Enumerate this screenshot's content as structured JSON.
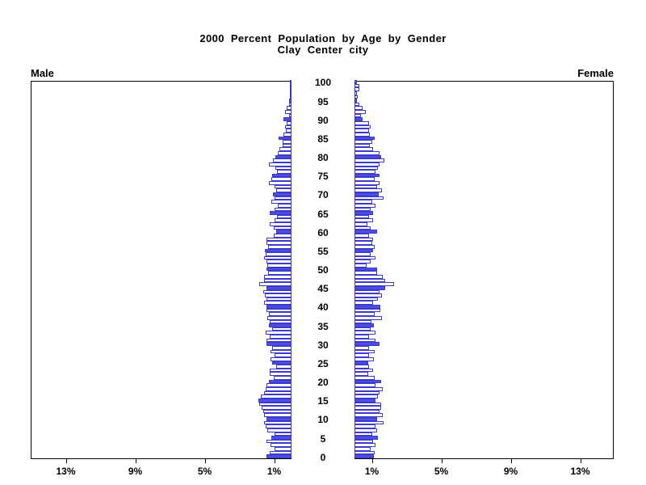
{
  "title": {
    "line1": "2000 Percent Population by Age by Gender",
    "line2": "Clay Center city"
  },
  "panel_labels": {
    "male": "Male",
    "female": "Female"
  },
  "axis": {
    "male_tick_labels": [
      "13%",
      "9%",
      "5%",
      "1%"
    ],
    "male_tick_percents": [
      13,
      9,
      5,
      1
    ],
    "female_tick_labels": [
      "1%",
      "5%",
      "9%",
      "13%"
    ],
    "female_tick_percents": [
      1,
      5,
      9,
      13
    ]
  },
  "colors": {
    "bar_outline": "#3a3acc",
    "bar_fill": "#4d4de4",
    "axis": "#000000",
    "background": "#ffffff"
  },
  "chart_data": {
    "type": "bar",
    "subtype": "population_pyramid",
    "orientation": "horizontal",
    "title": "2000 Percent Population by Age by Gender",
    "subtitle": "Clay Center city",
    "value_unit": "percent of total population",
    "age_min": 0,
    "age_max": 100,
    "age_axis_ticks": [
      0,
      5,
      10,
      15,
      20,
      25,
      30,
      35,
      40,
      45,
      50,
      55,
      60,
      65,
      70,
      75,
      80,
      85,
      90,
      95,
      100
    ],
    "value_axis_ticks_percent": [
      1,
      5,
      9,
      13
    ],
    "value_axis_range_percent": [
      0,
      15
    ],
    "filled_bar_rule": "ages that are multiples of 5 are solid blue, others hollow",
    "legend_position": "none",
    "grid": false,
    "series": [
      {
        "name": "Male",
        "side": "left",
        "values_percent": [
          1.45,
          1.27,
          1.0,
          1.19,
          1.42,
          1.15,
          1.0,
          1.39,
          1.5,
          1.57,
          1.45,
          1.6,
          1.65,
          1.73,
          1.85,
          1.9,
          1.76,
          1.6,
          1.5,
          1.42,
          1.3,
          1.04,
          1.24,
          1.24,
          0.89,
          1.1,
          1.19,
          1.0,
          1.22,
          1.11,
          1.42,
          1.45,
          1.27,
          1.5,
          1.11,
          1.3,
          1.27,
          1.39,
          1.3,
          1.45,
          1.42,
          1.6,
          1.45,
          1.54,
          1.65,
          1.45,
          1.88,
          1.6,
          1.57,
          1.34,
          1.45,
          1.4,
          1.45,
          1.6,
          1.5,
          1.53,
          1.34,
          1.45,
          1.42,
          1.02,
          0.9,
          1.04,
          1.25,
          1.0,
          0.84,
          1.24,
          0.96,
          0.8,
          1.15,
          1.0,
          1.09,
          0.89,
          0.96,
          1.3,
          1.15,
          1.1,
          0.84,
          0.92,
          1.3,
          1.07,
          0.95,
          0.77,
          0.69,
          0.53,
          0.49,
          0.73,
          0.46,
          0.33,
          0.38,
          0.3,
          0.46,
          0.15,
          0.38,
          0.28,
          0.12,
          0.12,
          0.1,
          0.0,
          0.05,
          0.0,
          0.0
        ]
      },
      {
        "name": "Female",
        "side": "right",
        "values_percent": [
          1.1,
          1.15,
          0.92,
          1.19,
          1.07,
          1.34,
          1.0,
          1.3,
          1.19,
          1.68,
          1.3,
          1.65,
          1.45,
          1.53,
          1.53,
          1.22,
          1.34,
          1.45,
          1.65,
          1.22,
          1.53,
          1.15,
          0.77,
          1.07,
          0.84,
          0.77,
          1.1,
          0.84,
          1.15,
          0.84,
          1.45,
          1.19,
          0.84,
          1.19,
          0.92,
          1.1,
          0.97,
          1.6,
          1.15,
          1.5,
          1.5,
          1.07,
          1.34,
          1.6,
          1.45,
          1.76,
          2.26,
          1.76,
          1.65,
          1.3,
          1.3,
          0.69,
          0.92,
          1.22,
          0.92,
          1.07,
          1.15,
          1.0,
          1.07,
          0.84,
          1.3,
          0.92,
          0.73,
          1.07,
          0.84,
          1.07,
          0.92,
          1.22,
          1.0,
          1.68,
          1.38,
          1.6,
          1.3,
          1.45,
          1.15,
          1.45,
          1.2,
          1.35,
          1.45,
          1.71,
          1.53,
          1.45,
          1.07,
          0.9,
          1.0,
          1.15,
          0.9,
          0.84,
          0.95,
          0.84,
          0.46,
          0.38,
          0.64,
          0.46,
          0.28,
          0.15,
          0.18,
          0.12,
          0.3,
          0.28,
          0.15
        ]
      }
    ]
  }
}
